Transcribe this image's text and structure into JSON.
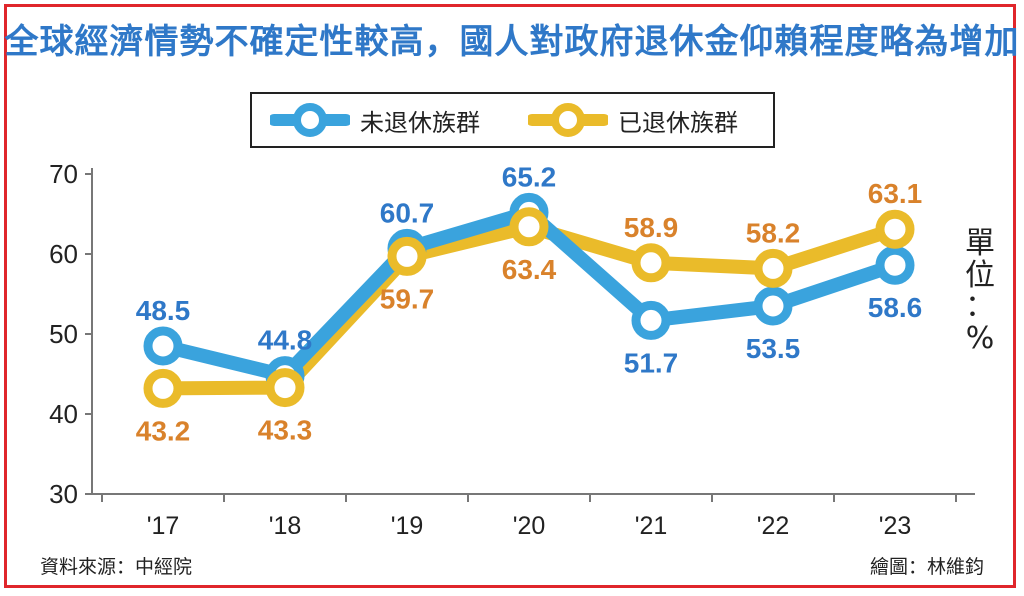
{
  "title": "全球經濟情勢不確定性較高，國人對政府退休金仰賴程度略為增加",
  "unit_label": "單位：%",
  "unit_chars": [
    "單",
    "位",
    "：",
    "%"
  ],
  "source": "資料來源：中經院",
  "credit": "繪圖：林維鈞",
  "colors": {
    "blue": "#3aa3dd",
    "yellow": "#eabb2a",
    "blue_label": "#2f78c8",
    "orange_label": "#d9822b"
  },
  "chart_data": {
    "type": "line",
    "title": "全球經濟情勢不確定性較高，國人對政府退休金仰賴程度略為增加",
    "xlabel": "",
    "ylabel": "單位：%",
    "x": [
      "'17",
      "'18",
      "'19",
      "'20",
      "'21",
      "'22",
      "'23"
    ],
    "ylim": [
      30,
      70
    ],
    "yticks": [
      30,
      40,
      50,
      60,
      70
    ],
    "grid": false,
    "legend_position": "top-center",
    "series": [
      {
        "name": "未退休族群",
        "color": "#3aa3dd",
        "label_color": "#2f78c8",
        "values": [
          48.5,
          44.8,
          60.7,
          65.2,
          51.7,
          53.5,
          58.6
        ],
        "label_pos": [
          "above",
          "above",
          "above",
          "above",
          "below",
          "below",
          "below"
        ]
      },
      {
        "name": "已退休族群",
        "color": "#eabb2a",
        "label_color": "#d9822b",
        "values": [
          43.2,
          43.3,
          59.7,
          63.4,
          58.9,
          58.2,
          63.1
        ],
        "label_pos": [
          "below",
          "below",
          "below",
          "below",
          "above",
          "above",
          "above"
        ]
      }
    ]
  }
}
